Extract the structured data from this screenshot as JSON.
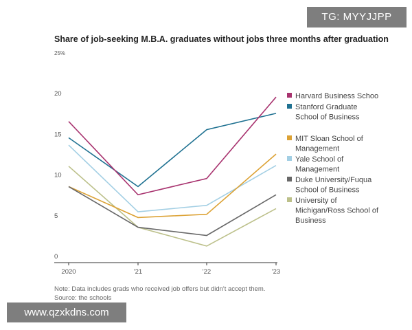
{
  "chart_data": {
    "type": "line",
    "title": "Share of job-seeking M.B.A. graduates without jobs three months after graduation",
    "categories": [
      "2020",
      "'21",
      "'22",
      "'23"
    ],
    "y_ticks": [
      "25%",
      "20",
      "15",
      "10",
      "5",
      "0"
    ],
    "ylim": [
      0,
      25
    ],
    "xlabel": "",
    "ylabel": "",
    "grid": false,
    "legend_position": "right",
    "series": [
      {
        "name": "Harvard Business School",
        "legend_lines": [
          "Harvard Business Schoo"
        ],
        "color": "#a8336f",
        "values": [
          17,
          8,
          10,
          20
        ]
      },
      {
        "name": "Stanford Graduate School of Business",
        "legend_lines": [
          "Stanford Graduate",
          "School of Business"
        ],
        "color": "#1f7191",
        "values": [
          15,
          9,
          16,
          18
        ]
      },
      {
        "name": "MIT Sloan School of Management",
        "legend_lines": [
          "MIT Sloan School of",
          "Management"
        ],
        "color": "#dca235",
        "values": [
          9,
          5.2,
          5.6,
          13
        ]
      },
      {
        "name": "Yale School of Management",
        "legend_lines": [
          "Yale School of",
          "Management"
        ],
        "color": "#a3cfe4",
        "values": [
          14.1,
          5.9,
          6.7,
          11.6
        ]
      },
      {
        "name": "Duke University/Fuqua School of Business",
        "legend_lines": [
          "Duke University/Fuqua",
          "School of Business"
        ],
        "color": "#686868",
        "values": [
          9,
          4,
          3,
          8
        ]
      },
      {
        "name": "University of Michigan/Ross School of Business",
        "legend_lines": [
          "University of",
          "Michigan/Ross School of",
          "Business"
        ],
        "color": "#bcc08a",
        "values": [
          11.5,
          4,
          1.7,
          6.3
        ]
      }
    ],
    "note": "Note: Data includes grads who received job offers but didn't accept them.",
    "source": "Source: the schools"
  },
  "watermarks": {
    "top": "TG: MYYJJPP",
    "bottom": "www.qzxkdns.com"
  }
}
